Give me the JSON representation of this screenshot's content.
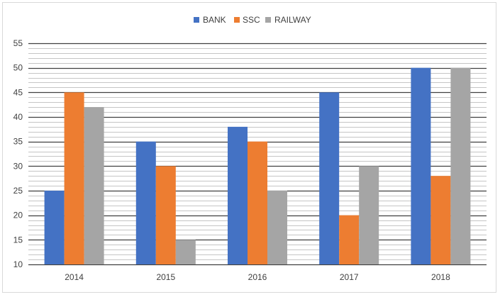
{
  "chart_data": {
    "type": "bar",
    "title": "",
    "xlabel": "",
    "ylabel": "",
    "categories": [
      "2014",
      "2015",
      "2016",
      "2017",
      "2018"
    ],
    "series": [
      {
        "name": "BANK",
        "values": [
          25,
          35,
          38,
          45,
          50
        ]
      },
      {
        "name": "SSC",
        "values": [
          45,
          30,
          35,
          20,
          28
        ]
      },
      {
        "name": "RAILWAY",
        "values": [
          42,
          15,
          25,
          30,
          50
        ]
      }
    ],
    "ylim": [
      10,
      55
    ],
    "yticks": [
      "10",
      "15",
      "20",
      "25",
      "30",
      "35",
      "40",
      "45",
      "50",
      "55"
    ],
    "grid": true,
    "legend_position": "top-center",
    "colors": {
      "BANK": "#4472c4",
      "SSC": "#ed7d31",
      "RAILWAY": "#a5a5a5",
      "grid": "#595959",
      "text": "#404040"
    }
  }
}
